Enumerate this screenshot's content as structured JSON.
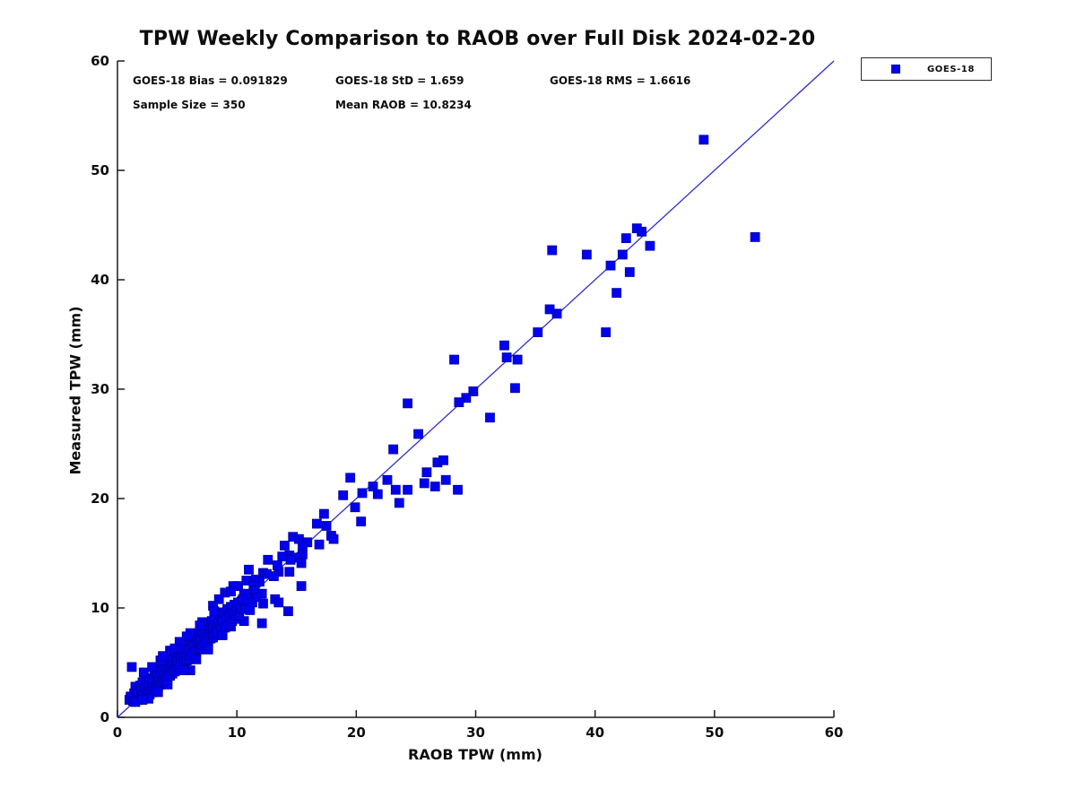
{
  "title": "TPW Weekly Comparison to RAOB over Full Disk 2024-02-20",
  "stats": {
    "bias": "GOES-18 Bias = 0.091829",
    "std": "GOES-18 StD = 1.659",
    "rms": "GOES-18 RMS = 1.6616",
    "sample_size": "Sample Size = 350",
    "mean_raob": "Mean RAOB = 10.8234"
  },
  "legend": {
    "label": "GOES-18",
    "marker_color": "#0101ef"
  },
  "chart_data": {
    "type": "scatter",
    "title": "TPW Weekly Comparison to RAOB over Full Disk 2024-02-20",
    "xlabel": "RAOB TPW (mm)",
    "ylabel": "Measured TPW (mm)",
    "xlim": [
      0,
      60
    ],
    "ylim": [
      0,
      60
    ],
    "xticks": [
      0,
      10,
      20,
      30,
      40,
      50,
      60
    ],
    "yticks": [
      0,
      10,
      20,
      30,
      40,
      50,
      60
    ],
    "grid": false,
    "legend_position": "outside-top-right",
    "identity_line": {
      "from": [
        0,
        0
      ],
      "to": [
        60,
        60
      ],
      "color": "#2e2ed0"
    },
    "series": [
      {
        "name": "GOES-18",
        "marker": "square",
        "marker_size_px": 10,
        "color": "#0101ef",
        "edge_color": "#0000a0",
        "points": [
          [
            49.1,
            52.8
          ],
          [
            53.4,
            43.9
          ],
          [
            43.5,
            44.7
          ],
          [
            43.9,
            44.4
          ],
          [
            42.6,
            43.8
          ],
          [
            44.6,
            43.1
          ],
          [
            36.4,
            42.7
          ],
          [
            39.3,
            42.3
          ],
          [
            42.3,
            42.3
          ],
          [
            41.3,
            41.3
          ],
          [
            42.9,
            40.7
          ],
          [
            41.8,
            38.8
          ],
          [
            36.2,
            37.3
          ],
          [
            36.8,
            36.9
          ],
          [
            35.2,
            35.2
          ],
          [
            40.9,
            35.2
          ],
          [
            32.4,
            34.0
          ],
          [
            32.6,
            32.9
          ],
          [
            33.5,
            32.7
          ],
          [
            28.2,
            32.7
          ],
          [
            33.3,
            30.1
          ],
          [
            29.8,
            29.8
          ],
          [
            29.2,
            29.2
          ],
          [
            28.6,
            28.8
          ],
          [
            24.3,
            28.7
          ],
          [
            31.2,
            27.4
          ],
          [
            25.2,
            25.9
          ],
          [
            23.1,
            24.5
          ],
          [
            26.8,
            23.3
          ],
          [
            27.3,
            23.5
          ],
          [
            19.5,
            21.9
          ],
          [
            22.6,
            21.7
          ],
          [
            25.9,
            22.4
          ],
          [
            27.5,
            21.7
          ],
          [
            25.7,
            21.4
          ],
          [
            26.6,
            21.1
          ],
          [
            21.4,
            21.1
          ],
          [
            20.5,
            20.5
          ],
          [
            21.8,
            20.4
          ],
          [
            18.9,
            20.3
          ],
          [
            23.3,
            20.8
          ],
          [
            24.3,
            20.8
          ],
          [
            28.5,
            20.8
          ],
          [
            23.6,
            19.6
          ],
          [
            19.9,
            19.2
          ],
          [
            20.4,
            17.9
          ],
          [
            17.3,
            18.6
          ],
          [
            16.7,
            17.7
          ],
          [
            17.5,
            17.5
          ],
          [
            17.9,
            16.6
          ],
          [
            18.1,
            16.3
          ],
          [
            14.7,
            16.5
          ],
          [
            15.2,
            16.3
          ],
          [
            15.9,
            16.0
          ],
          [
            16.9,
            15.8
          ],
          [
            14.0,
            15.7
          ],
          [
            15.5,
            15.6
          ],
          [
            14.4,
            14.8
          ],
          [
            15.5,
            14.9
          ],
          [
            13.8,
            14.7
          ],
          [
            14.9,
            14.6
          ],
          [
            15.4,
            14.1
          ],
          [
            13.5,
            13.3
          ],
          [
            12.6,
            14.4
          ],
          [
            13.4,
            13.9
          ],
          [
            14.5,
            14.4
          ],
          [
            11.0,
            13.5
          ],
          [
            12.2,
            13.2
          ],
          [
            12.5,
            13.1
          ],
          [
            13.1,
            12.9
          ],
          [
            14.4,
            13.3
          ],
          [
            11.6,
            12.6
          ],
          [
            11.9,
            12.4
          ],
          [
            10.8,
            12.5
          ],
          [
            9.7,
            12.0
          ],
          [
            10.1,
            12.0
          ],
          [
            11.4,
            12.0
          ],
          [
            15.4,
            12.0
          ],
          [
            9.0,
            11.4
          ],
          [
            9.5,
            11.5
          ],
          [
            10.6,
            11.3
          ],
          [
            12.1,
            11.3
          ],
          [
            13.2,
            10.8
          ],
          [
            13.5,
            10.5
          ],
          [
            8.5,
            10.8
          ],
          [
            10.4,
            10.6
          ],
          [
            12.2,
            10.4
          ],
          [
            8.0,
            10.2
          ],
          [
            9.8,
            10.1
          ],
          [
            11.1,
            9.8
          ],
          [
            14.3,
            9.7
          ],
          [
            8.2,
            9.4
          ],
          [
            9.6,
            9.0
          ],
          [
            10.6,
            8.8
          ],
          [
            12.1,
            8.6
          ],
          [
            8.6,
            8.5
          ],
          [
            9.5,
            8.3
          ],
          [
            1.2,
            4.6
          ],
          [
            6.1,
            4.3
          ],
          [
            1.0,
            1.6
          ],
          [
            1.1,
            1.9
          ],
          [
            1.3,
            1.5
          ],
          [
            1.4,
            2.2
          ],
          [
            1.5,
            2.8
          ],
          [
            1.6,
            1.8
          ],
          [
            1.7,
            2.4
          ],
          [
            1.8,
            1.6
          ],
          [
            1.9,
            2.9
          ],
          [
            2.0,
            1.8
          ],
          [
            2.0,
            2.5
          ],
          [
            2.1,
            3.2
          ],
          [
            2.2,
            2.0
          ],
          [
            2.3,
            2.7
          ],
          [
            2.4,
            1.9
          ],
          [
            2.4,
            3.4
          ],
          [
            2.5,
            2.3
          ],
          [
            2.6,
            3.0
          ],
          [
            2.7,
            2.1
          ],
          [
            2.7,
            3.6
          ],
          [
            2.8,
            2.5
          ],
          [
            2.9,
            3.2
          ],
          [
            3.0,
            2.3
          ],
          [
            3.0,
            2.8
          ],
          [
            3.1,
            3.5
          ],
          [
            3.1,
            4.2
          ],
          [
            3.2,
            2.6
          ],
          [
            3.3,
            3.1
          ],
          [
            3.3,
            3.9
          ],
          [
            3.4,
            2.8
          ],
          [
            3.5,
            3.4
          ],
          [
            3.5,
            4.5
          ],
          [
            3.6,
            3.0
          ],
          [
            3.7,
            3.7
          ],
          [
            3.7,
            4.2
          ],
          [
            3.8,
            3.2
          ],
          [
            3.9,
            3.9
          ],
          [
            3.9,
            4.8
          ],
          [
            4.0,
            3.3
          ],
          [
            4.0,
            4.1
          ],
          [
            4.1,
            4.6
          ],
          [
            4.1,
            5.3
          ],
          [
            4.2,
            3.6
          ],
          [
            4.3,
            4.3
          ],
          [
            4.3,
            5.0
          ],
          [
            4.4,
            3.8
          ],
          [
            4.5,
            4.5
          ],
          [
            4.5,
            5.5
          ],
          [
            4.6,
            4.0
          ],
          [
            4.7,
            4.8
          ],
          [
            4.7,
            5.2
          ],
          [
            4.8,
            4.2
          ],
          [
            4.9,
            5.0
          ],
          [
            4.9,
            5.8
          ],
          [
            5.0,
            4.4
          ],
          [
            5.0,
            5.2
          ],
          [
            5.1,
            5.9
          ],
          [
            5.2,
            4.6
          ],
          [
            5.3,
            5.4
          ],
          [
            5.3,
            6.2
          ],
          [
            5.4,
            4.8
          ],
          [
            5.5,
            5.6
          ],
          [
            5.5,
            6.5
          ],
          [
            5.6,
            5.0
          ],
          [
            5.7,
            5.8
          ],
          [
            5.7,
            6.3
          ],
          [
            5.8,
            5.2
          ],
          [
            5.9,
            6.0
          ],
          [
            5.9,
            6.8
          ],
          [
            6.0,
            5.3
          ],
          [
            6.0,
            6.2
          ],
          [
            6.1,
            6.9
          ],
          [
            6.2,
            5.6
          ],
          [
            6.3,
            6.4
          ],
          [
            6.3,
            7.2
          ],
          [
            6.4,
            5.8
          ],
          [
            6.5,
            6.6
          ],
          [
            6.5,
            7.5
          ],
          [
            6.6,
            6.0
          ],
          [
            6.7,
            6.8
          ],
          [
            6.7,
            7.3
          ],
          [
            6.8,
            6.2
          ],
          [
            6.9,
            7.0
          ],
          [
            6.9,
            7.8
          ],
          [
            7.0,
            6.3
          ],
          [
            7.0,
            7.2
          ],
          [
            7.1,
            7.9
          ],
          [
            7.2,
            6.6
          ],
          [
            7.3,
            7.4
          ],
          [
            7.3,
            8.2
          ],
          [
            7.4,
            6.8
          ],
          [
            7.5,
            7.6
          ],
          [
            7.5,
            8.5
          ],
          [
            7.6,
            7.0
          ],
          [
            7.7,
            7.8
          ],
          [
            7.7,
            8.3
          ],
          [
            7.8,
            7.2
          ],
          [
            7.9,
            8.0
          ],
          [
            7.9,
            8.8
          ],
          [
            8.0,
            7.3
          ],
          [
            8.0,
            8.2
          ],
          [
            8.1,
            8.9
          ],
          [
            8.2,
            7.6
          ],
          [
            8.3,
            8.4
          ],
          [
            8.4,
            7.8
          ],
          [
            8.5,
            8.6
          ],
          [
            8.6,
            9.5
          ],
          [
            8.7,
            8.0
          ],
          [
            8.8,
            8.8
          ],
          [
            8.9,
            9.6
          ],
          [
            9.0,
            8.2
          ],
          [
            9.1,
            9.0
          ],
          [
            9.2,
            9.9
          ],
          [
            9.3,
            8.5
          ],
          [
            9.4,
            9.2
          ],
          [
            9.5,
            10.1
          ],
          [
            9.6,
            8.8
          ],
          [
            9.7,
            9.5
          ],
          [
            9.8,
            10.3
          ],
          [
            9.9,
            9.0
          ],
          [
            10.0,
            9.7
          ],
          [
            10.1,
            10.5
          ],
          [
            10.2,
            9.3
          ],
          [
            10.3,
            10.0
          ],
          [
            10.5,
            10.8
          ],
          [
            10.7,
            9.9
          ],
          [
            10.9,
            10.7
          ],
          [
            11.1,
            11.2
          ],
          [
            11.3,
            10.5
          ],
          [
            11.5,
            11.6
          ],
          [
            11.7,
            11.0
          ],
          [
            2.2,
            4.1
          ],
          [
            2.9,
            4.6
          ],
          [
            3.6,
            5.2
          ],
          [
            4.4,
            6.1
          ],
          [
            5.2,
            6.9
          ],
          [
            6.1,
            7.7
          ],
          [
            7.1,
            8.7
          ],
          [
            8.1,
            9.7
          ],
          [
            2.6,
            1.7
          ],
          [
            3.4,
            2.3
          ],
          [
            4.2,
            3.0
          ],
          [
            5.6,
            4.3
          ],
          [
            6.6,
            5.3
          ],
          [
            7.6,
            6.2
          ],
          [
            8.8,
            7.5
          ],
          [
            1.5,
            1.4
          ],
          [
            2.1,
            1.6
          ],
          [
            5.8,
            7.4
          ],
          [
            6.9,
            8.4
          ],
          [
            4.8,
            6.3
          ],
          [
            3.8,
            5.6
          ]
        ]
      }
    ]
  }
}
